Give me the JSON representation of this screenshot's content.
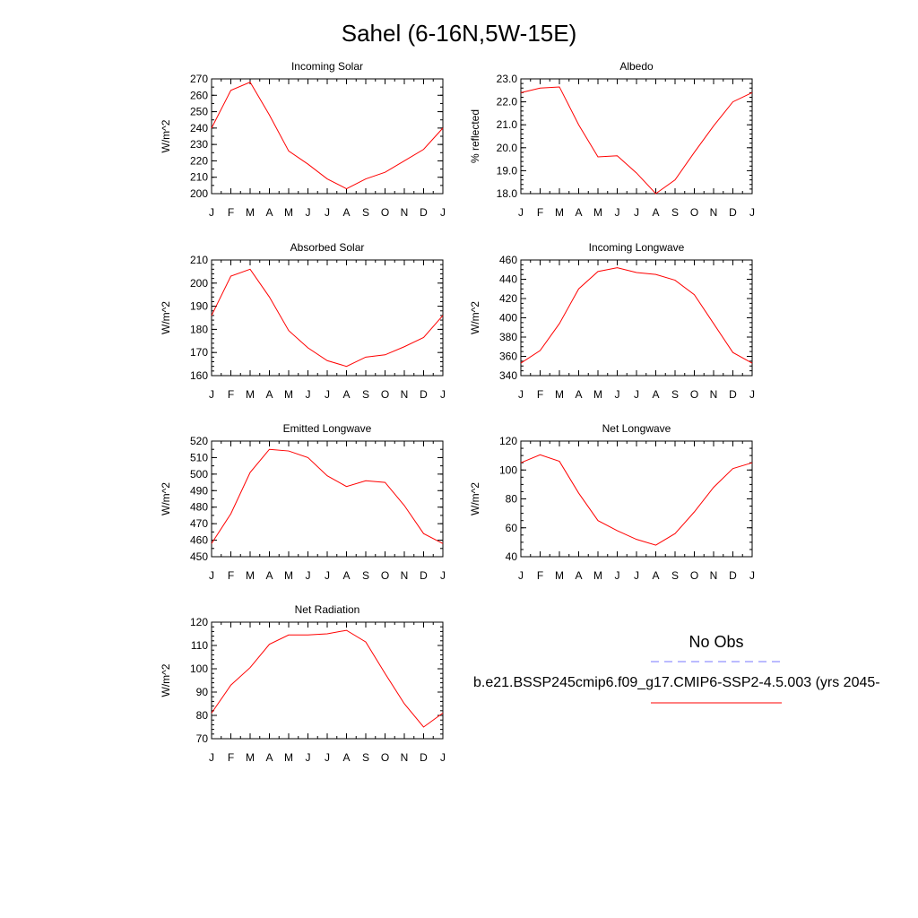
{
  "figure": {
    "title": "Sahel (6-16N,5W-15E)"
  },
  "legend": {
    "entries": [
      {
        "label": "No Obs",
        "color": "#7777ff",
        "dash": true
      },
      {
        "label": "b.e21.BSSP245cmip6.f09_g17.CMIP6-SSP2-4.5.003 (yrs 2045-",
        "color": "#ff0000",
        "dash": false
      }
    ]
  },
  "chart_data": [
    {
      "type": "line",
      "title": "Incoming Solar",
      "xlabel": "",
      "ylabel": "W/m^2",
      "categories": [
        "J",
        "F",
        "M",
        "A",
        "M",
        "J",
        "J",
        "A",
        "S",
        "O",
        "N",
        "D",
        "J"
      ],
      "ylim": [
        200,
        270
      ],
      "yticks": [
        200,
        210,
        220,
        230,
        240,
        250,
        260,
        270
      ],
      "ytick_labels": [
        "200",
        "210",
        "220",
        "230",
        "240",
        "250",
        "260",
        "270"
      ],
      "yminor_step": 5,
      "series": [
        {
          "color": "#ff0000",
          "values": [
            240,
            263,
            268,
            248,
            226,
            218,
            209,
            203,
            209,
            213,
            220,
            227,
            240
          ]
        }
      ]
    },
    {
      "type": "line",
      "title": "Albedo",
      "xlabel": "",
      "ylabel": "% reflected",
      "categories": [
        "J",
        "F",
        "M",
        "A",
        "M",
        "J",
        "J",
        "A",
        "S",
        "O",
        "N",
        "D",
        "J"
      ],
      "ylim": [
        18.0,
        23.0
      ],
      "yticks": [
        18,
        19,
        20,
        21,
        22,
        23
      ],
      "ytick_labels": [
        "18.0",
        "19.0",
        "20.0",
        "21.0",
        "22.0",
        "23.0"
      ],
      "yminor_step": 0.2,
      "series": [
        {
          "color": "#ff0000",
          "values": [
            22.4,
            22.6,
            22.65,
            21.0,
            19.6,
            19.65,
            18.9,
            18.0,
            18.6,
            19.8,
            20.95,
            22.0,
            22.4
          ]
        }
      ]
    },
    {
      "type": "line",
      "title": "Absorbed Solar",
      "xlabel": "",
      "ylabel": "W/m^2",
      "categories": [
        "J",
        "F",
        "M",
        "A",
        "M",
        "J",
        "J",
        "A",
        "S",
        "O",
        "N",
        "D",
        "J"
      ],
      "ylim": [
        160,
        210
      ],
      "yticks": [
        160,
        170,
        180,
        190,
        200,
        210
      ],
      "ytick_labels": [
        "160",
        "170",
        "180",
        "190",
        "200",
        "210"
      ],
      "yminor_step": 2,
      "series": [
        {
          "color": "#ff0000",
          "values": [
            186,
            203,
            206,
            194,
            179.5,
            172,
            166.5,
            164,
            168,
            169,
            172.5,
            176.5,
            186
          ]
        }
      ]
    },
    {
      "type": "line",
      "title": "Incoming Longwave",
      "xlabel": "",
      "ylabel": "W/m^2",
      "categories": [
        "J",
        "F",
        "M",
        "A",
        "M",
        "J",
        "J",
        "A",
        "S",
        "O",
        "N",
        "D",
        "J"
      ],
      "ylim": [
        340,
        460
      ],
      "yticks": [
        340,
        360,
        380,
        400,
        420,
        440,
        460
      ],
      "ytick_labels": [
        "340",
        "360",
        "380",
        "400",
        "420",
        "440",
        "460"
      ],
      "yminor_step": 5,
      "series": [
        {
          "color": "#ff0000",
          "values": [
            353,
            366,
            394,
            430,
            448,
            452,
            447,
            445,
            439,
            424,
            394,
            364,
            353
          ]
        }
      ]
    },
    {
      "type": "line",
      "title": "Emitted Longwave",
      "xlabel": "",
      "ylabel": "W/m^2",
      "categories": [
        "J",
        "F",
        "M",
        "A",
        "M",
        "J",
        "J",
        "A",
        "S",
        "O",
        "N",
        "D",
        "J"
      ],
      "ylim": [
        450,
        520
      ],
      "yticks": [
        450,
        460,
        470,
        480,
        490,
        500,
        510,
        520
      ],
      "ytick_labels": [
        "450",
        "460",
        "470",
        "480",
        "490",
        "500",
        "510",
        "520"
      ],
      "yminor_step": 5,
      "series": [
        {
          "color": "#ff0000",
          "values": [
            458,
            476,
            501,
            515,
            514,
            510,
            499,
            492.5,
            496,
            495,
            481,
            464,
            458
          ]
        }
      ]
    },
    {
      "type": "line",
      "title": "Net Longwave",
      "xlabel": "",
      "ylabel": "W/m^2",
      "categories": [
        "J",
        "F",
        "M",
        "A",
        "M",
        "J",
        "J",
        "A",
        "S",
        "O",
        "N",
        "D",
        "J"
      ],
      "ylim": [
        40,
        120
      ],
      "yticks": [
        40,
        60,
        80,
        100,
        120
      ],
      "ytick_labels": [
        "40",
        "60",
        "80",
        "100",
        "120"
      ],
      "yminor_step": 5,
      "series": [
        {
          "color": "#ff0000",
          "values": [
            105,
            110.5,
            106,
            84,
            65,
            58,
            52,
            48,
            56,
            71,
            88,
            101,
            105
          ]
        }
      ]
    },
    {
      "type": "line",
      "title": "Net Radiation",
      "xlabel": "",
      "ylabel": "W/m^2",
      "categories": [
        "J",
        "F",
        "M",
        "A",
        "M",
        "J",
        "J",
        "A",
        "S",
        "O",
        "N",
        "D",
        "J"
      ],
      "ylim": [
        70,
        120
      ],
      "yticks": [
        70,
        80,
        90,
        100,
        110,
        120
      ],
      "ytick_labels": [
        "70",
        "80",
        "90",
        "100",
        "110",
        "120"
      ],
      "yminor_step": 2,
      "series": [
        {
          "color": "#ff0000",
          "values": [
            81,
            93,
            100.5,
            110.5,
            114.5,
            114.5,
            115,
            116.5,
            111.5,
            98,
            85,
            75,
            81
          ]
        }
      ]
    }
  ]
}
